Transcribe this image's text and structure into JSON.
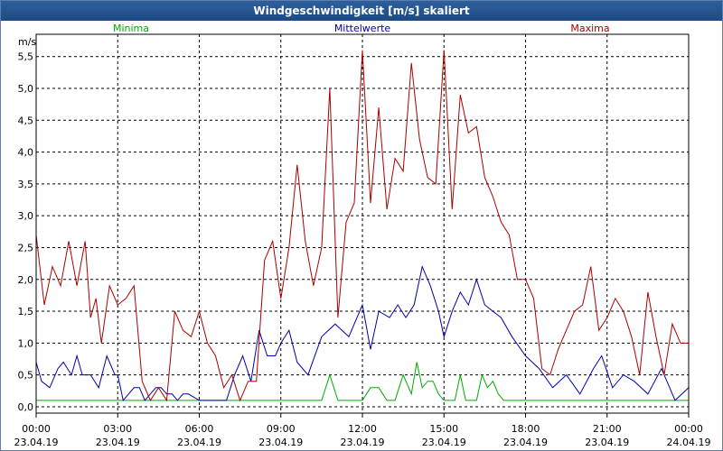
{
  "window": {
    "title": "Windgeschwindigkeit [m/s] skaliert"
  },
  "chart_data": {
    "type": "line",
    "title": "Windgeschwindigkeit [m/s] skaliert",
    "ylabel": "m/s",
    "ylim": [
      -0.1,
      5.85
    ],
    "xlim": [
      0,
      24
    ],
    "grid": true,
    "legend_placement": "top",
    "y_ticks": [
      "0,0",
      "0,5",
      "1,0",
      "1,5",
      "2,0",
      "2,5",
      "3,0",
      "3,5",
      "4,0",
      "4,5",
      "5,0",
      "5,5"
    ],
    "x_ticks": [
      {
        "time": "00:00",
        "date": "23.04.19"
      },
      {
        "time": "03:00",
        "date": "23.04.19"
      },
      {
        "time": "06:00",
        "date": "23.04.19"
      },
      {
        "time": "09:00",
        "date": "23.04.19"
      },
      {
        "time": "12:00",
        "date": "23.04.19"
      },
      {
        "time": "15:00",
        "date": "23.04.19"
      },
      {
        "time": "18:00",
        "date": "23.04.19"
      },
      {
        "time": "21:00",
        "date": "23.04.19"
      },
      {
        "time": "00:00",
        "date": "24.04.19"
      }
    ],
    "series": [
      {
        "name": "Minima",
        "color": "#00aa00",
        "x": [
          0,
          10.5,
          10.8,
          11.1,
          11.4,
          11.7,
          12.0,
          12.3,
          12.6,
          12.9,
          13.2,
          13.5,
          13.8,
          14.0,
          14.2,
          14.4,
          14.6,
          14.8,
          15.0,
          15.2,
          15.4,
          15.6,
          15.8,
          16.0,
          16.2,
          16.4,
          16.6,
          16.8,
          17.0,
          17.2,
          24.0
        ],
        "values": [
          0.1,
          0.1,
          0.5,
          0.1,
          0.1,
          0.1,
          0.1,
          0.3,
          0.3,
          0.1,
          0.1,
          0.5,
          0.2,
          0.7,
          0.3,
          0.4,
          0.4,
          0.2,
          0.1,
          0.1,
          0.1,
          0.5,
          0.1,
          0.1,
          0.1,
          0.5,
          0.3,
          0.4,
          0.2,
          0.1,
          0.1
        ]
      },
      {
        "name": "Mittelwerte",
        "color": "#0000aa",
        "x": [
          0,
          0.2,
          0.5,
          0.8,
          1.0,
          1.3,
          1.5,
          1.7,
          2.0,
          2.3,
          2.6,
          2.9,
          3.0,
          3.2,
          3.6,
          3.8,
          4.0,
          4.2,
          4.4,
          4.6,
          4.8,
          5.0,
          5.2,
          5.4,
          5.6,
          6.0,
          6.5,
          7.0,
          7.3,
          7.6,
          7.9,
          8.2,
          8.5,
          8.8,
          9.0,
          9.3,
          9.6,
          10.0,
          10.5,
          11.0,
          11.5,
          12.0,
          12.3,
          12.6,
          13.0,
          13.3,
          13.6,
          13.9,
          14.2,
          14.5,
          14.8,
          15.0,
          15.3,
          15.6,
          15.9,
          16.2,
          16.5,
          16.8,
          17.1,
          17.5,
          18.0,
          18.5,
          19.0,
          19.5,
          20.0,
          20.5,
          20.8,
          21.2,
          21.6,
          22.0,
          22.5,
          23.0,
          23.5,
          24.0
        ],
        "values": [
          0.7,
          0.4,
          0.3,
          0.6,
          0.7,
          0.5,
          0.8,
          0.5,
          0.5,
          0.3,
          0.8,
          0.5,
          0.5,
          0.1,
          0.3,
          0.3,
          0.1,
          0.2,
          0.3,
          0.3,
          0.2,
          0.2,
          0.1,
          0.2,
          0.2,
          0.1,
          0.1,
          0.1,
          0.5,
          0.8,
          0.4,
          1.2,
          0.8,
          0.8,
          1.0,
          1.2,
          0.7,
          0.5,
          1.1,
          1.3,
          1.1,
          1.6,
          0.9,
          1.5,
          1.4,
          1.6,
          1.4,
          1.6,
          2.2,
          1.9,
          1.5,
          1.1,
          1.5,
          1.8,
          1.6,
          2.0,
          1.6,
          1.5,
          1.4,
          1.1,
          0.8,
          0.6,
          0.3,
          0.5,
          0.2,
          0.6,
          0.8,
          0.3,
          0.5,
          0.4,
          0.2,
          0.6,
          0.1,
          0.3
        ]
      },
      {
        "name": "Maxima",
        "color": "#aa0000",
        "x": [
          0,
          0.3,
          0.6,
          0.9,
          1.2,
          1.5,
          1.8,
          2.0,
          2.2,
          2.4,
          2.7,
          3.0,
          3.3,
          3.6,
          3.9,
          4.2,
          4.5,
          4.8,
          5.1,
          5.4,
          5.7,
          6.0,
          6.3,
          6.6,
          6.9,
          7.2,
          7.5,
          7.8,
          8.1,
          8.4,
          8.7,
          9.0,
          9.3,
          9.6,
          9.9,
          10.2,
          10.5,
          10.8,
          11.1,
          11.4,
          11.7,
          12.0,
          12.3,
          12.6,
          12.9,
          13.2,
          13.5,
          13.8,
          14.1,
          14.4,
          14.7,
          15.0,
          15.3,
          15.6,
          15.9,
          16.2,
          16.5,
          16.8,
          17.1,
          17.4,
          17.7,
          18.0,
          18.3,
          18.6,
          18.9,
          19.2,
          19.5,
          19.8,
          20.1,
          20.4,
          20.7,
          21.0,
          21.3,
          21.6,
          21.9,
          22.2,
          22.5,
          22.8,
          23.1,
          23.4,
          23.7,
          24.0
        ],
        "values": [
          2.7,
          1.6,
          2.2,
          1.9,
          2.6,
          1.9,
          2.6,
          1.4,
          1.7,
          1.0,
          1.9,
          1.6,
          1.7,
          1.9,
          0.4,
          0.1,
          0.3,
          0.1,
          1.5,
          1.2,
          1.1,
          1.5,
          1.0,
          0.8,
          0.3,
          0.5,
          0.1,
          0.4,
          0.4,
          2.3,
          2.6,
          1.7,
          2.5,
          3.8,
          2.6,
          1.9,
          2.5,
          5.0,
          1.4,
          2.9,
          3.2,
          5.6,
          3.2,
          4.7,
          3.1,
          3.9,
          3.7,
          5.4,
          4.2,
          3.6,
          3.5,
          5.6,
          3.1,
          4.9,
          4.3,
          4.4,
          3.6,
          3.3,
          2.9,
          2.7,
          2.0,
          2.0,
          1.7,
          0.6,
          0.5,
          0.9,
          1.2,
          1.5,
          1.6,
          2.2,
          1.2,
          1.4,
          1.7,
          1.5,
          1.1,
          0.5,
          1.8,
          1.1,
          0.5,
          1.3,
          1.0,
          1.0
        ]
      }
    ]
  }
}
